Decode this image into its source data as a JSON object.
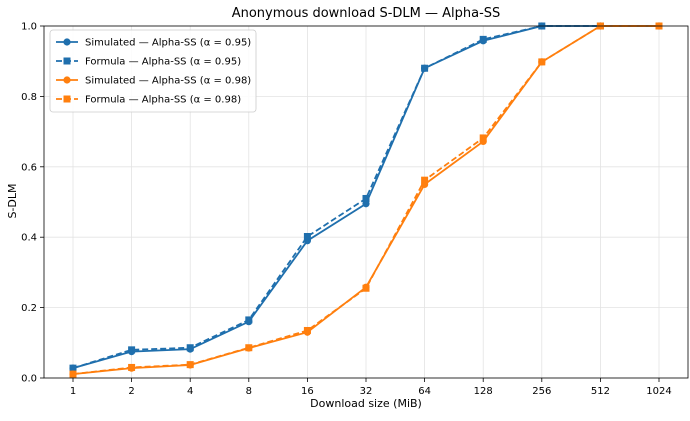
{
  "chart_data": {
    "type": "line",
    "title": "Anonymous download S-DLM — Alpha-SS",
    "xlabel": "Download size (MiB)",
    "ylabel": "S-DLM",
    "x_scale": "log2",
    "categories": [
      "1",
      "2",
      "4",
      "8",
      "16",
      "32",
      "64",
      "128",
      "256",
      "512",
      "1024"
    ],
    "ylim": [
      0,
      1.0
    ],
    "yticks": [
      "0.0",
      "0.2",
      "0.4",
      "0.6",
      "0.8",
      "1.0"
    ],
    "grid": true,
    "legend_position": "top-left",
    "series": [
      {
        "name": "Simulated — Alpha-SS (α = 0.95)",
        "color": "#1f6fad",
        "marker": "circle",
        "dash": "solid",
        "values": [
          0.028,
          0.075,
          0.082,
          0.16,
          0.39,
          0.495,
          0.88,
          0.958,
          1.0,
          1.0,
          1.0
        ]
      },
      {
        "name": "Formula — Alpha-SS (α = 0.95)",
        "color": "#1f6fad",
        "marker": "square",
        "dash": "dashed",
        "values": [
          0.028,
          0.08,
          0.086,
          0.165,
          0.402,
          0.51,
          0.88,
          0.962,
          1.0,
          1.0,
          1.0
        ]
      },
      {
        "name": "Simulated — Alpha-SS (α = 0.98)",
        "color": "#ff7f0e",
        "marker": "circle",
        "dash": "solid",
        "values": [
          0.011,
          0.028,
          0.037,
          0.085,
          0.13,
          0.258,
          0.55,
          0.672,
          0.898,
          1.0,
          1.0
        ]
      },
      {
        "name": "Formula — Alpha-SS (α = 0.98)",
        "color": "#ff7f0e",
        "marker": "square",
        "dash": "dashed",
        "values": [
          0.011,
          0.03,
          0.038,
          0.086,
          0.135,
          0.255,
          0.562,
          0.682,
          0.898,
          1.0,
          1.0
        ]
      }
    ]
  }
}
